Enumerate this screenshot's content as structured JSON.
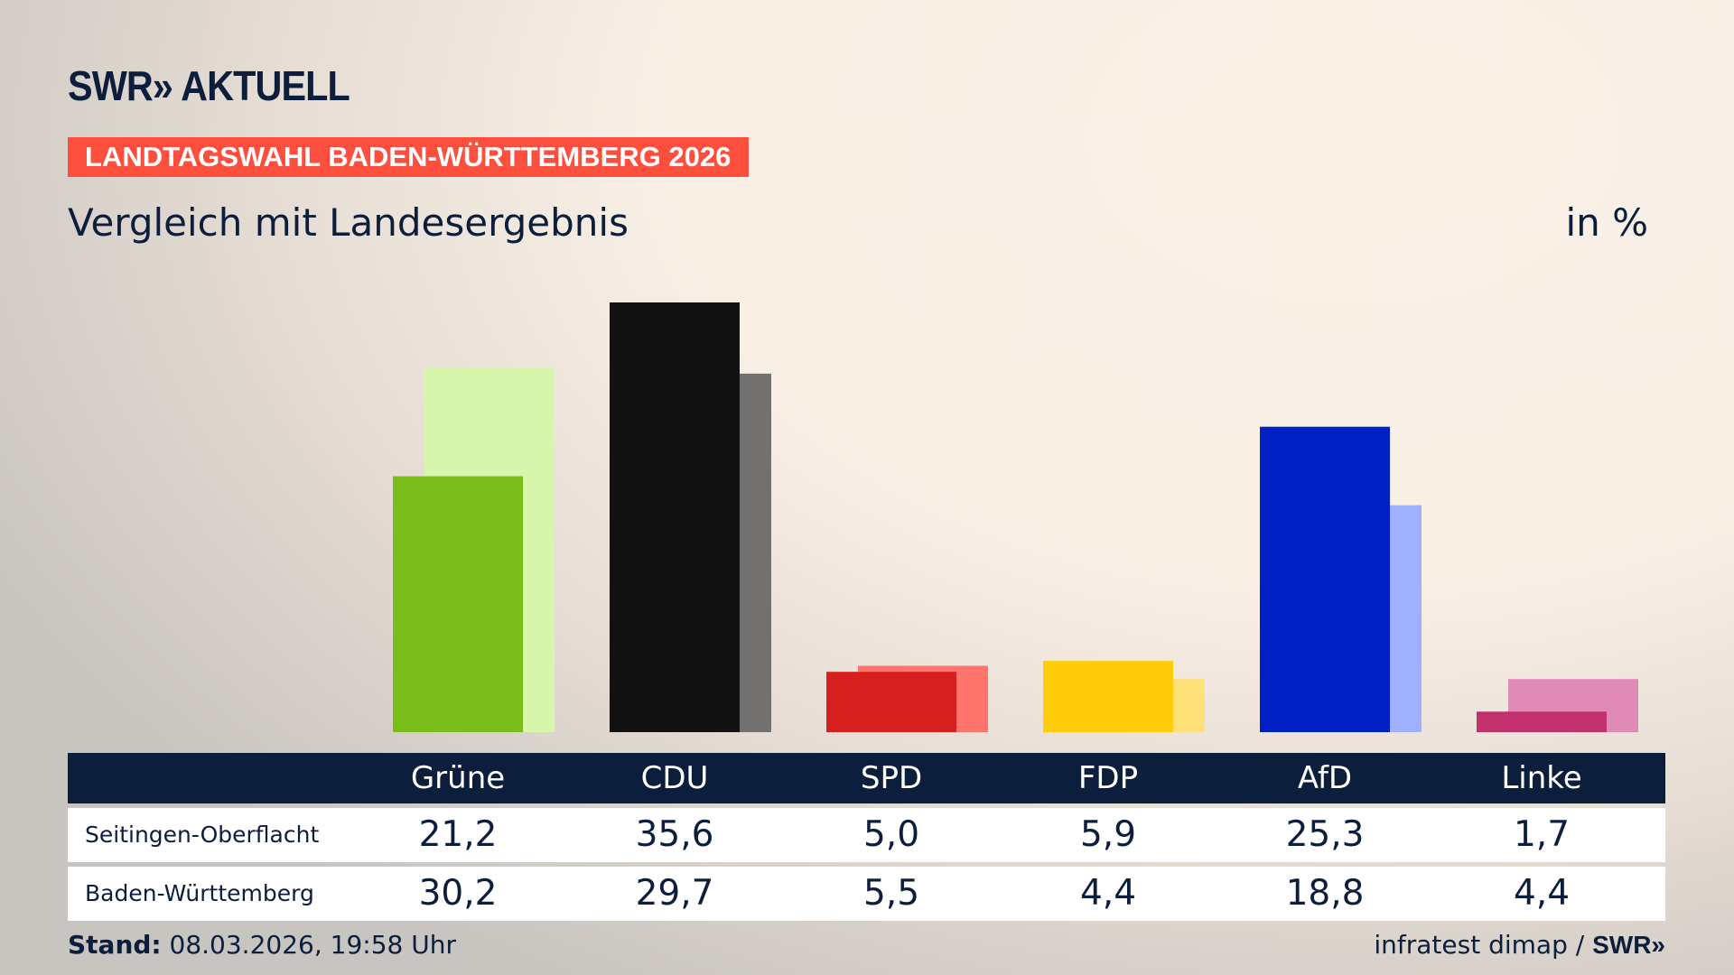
{
  "header": {
    "logo": "SWR» AKTUELL",
    "banner": "LANDTAGSWAHL BADEN-WÜRTTEMBERG 2026",
    "subtitle": "Vergleich mit Landesergebnis",
    "unit": "in %"
  },
  "chart_data": {
    "type": "bar",
    "categories": [
      "Grüne",
      "CDU",
      "SPD",
      "FDP",
      "AfD",
      "Linke"
    ],
    "series": [
      {
        "name": "Seitingen-Oberflacht",
        "values": [
          21.2,
          35.6,
          5.0,
          5.9,
          25.3,
          1.7
        ],
        "colors": [
          "#7abd1b",
          "#121212",
          "#d71f1f",
          "#ffcd0c",
          "#0020c6",
          "#c2306e"
        ]
      },
      {
        "name": "Baden-Württemberg",
        "values": [
          30.2,
          29.7,
          5.5,
          4.4,
          18.8,
          4.4
        ],
        "colors": [
          "#d6f6ab",
          "#727170",
          "#ff746c",
          "#ffe17a",
          "#9fb0ff",
          "#e08ab8"
        ]
      }
    ],
    "labels": {
      "categories": [
        "Grüne",
        "CDU",
        "SPD",
        "FDP",
        "AfD",
        "Linke"
      ],
      "rows": [
        {
          "name": "Seitingen-Oberflacht",
          "values": [
            "21,2",
            "35,6",
            "5,0",
            "5,9",
            "25,3",
            "1,7"
          ]
        },
        {
          "name": "Baden-Württemberg",
          "values": [
            "30,2",
            "29,7",
            "5,5",
            "4,4",
            "18,8",
            "4,4"
          ]
        }
      ]
    },
    "ylim": [
      0,
      35.6
    ]
  },
  "footer": {
    "stand_label": "Stand:",
    "stand_value": " 08.03.2026, 19:58 Uhr",
    "source": "infratest dimap / ",
    "source_logo": "SWR»"
  }
}
